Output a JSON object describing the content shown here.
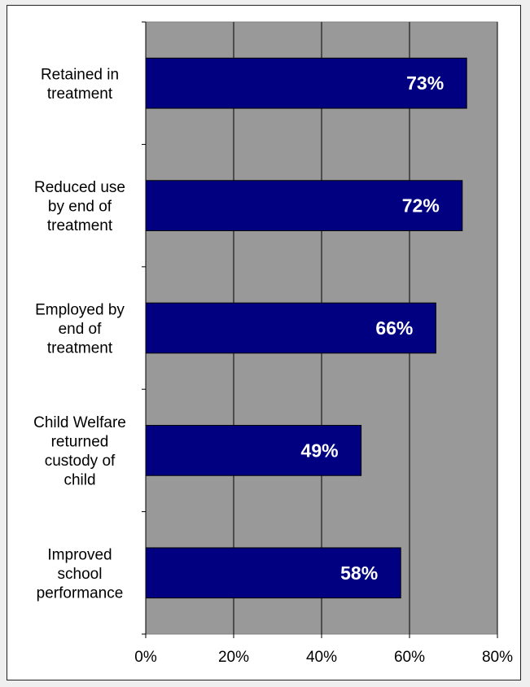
{
  "chart_data": {
    "type": "bar",
    "orientation": "horizontal",
    "title": "",
    "xlabel": "",
    "ylabel": "",
    "categories": [
      [
        "Retained in",
        "treatment"
      ],
      [
        "Reduced use",
        "by end of",
        "treatment"
      ],
      [
        "Employed by",
        "end of",
        "treatment"
      ],
      [
        "Child Welfare",
        "returned",
        "custody of",
        "child"
      ],
      [
        "Improved",
        "school",
        "performance"
      ]
    ],
    "values": [
      73,
      72,
      66,
      49,
      58
    ],
    "data_labels": [
      "73%",
      "72%",
      "66%",
      "49%",
      "58%"
    ],
    "xlim": [
      0,
      80
    ],
    "x_ticks": [
      0,
      20,
      40,
      60,
      80
    ],
    "x_tick_labels": [
      "0%",
      "20%",
      "40%",
      "60%",
      "80%"
    ],
    "grid": "vertical",
    "legend": "none",
    "colors": {
      "bar_fill": "#000080",
      "bar_stroke": "#000000",
      "plot_background": "#999999",
      "gridline": "#000000",
      "data_label": "#ffffff"
    }
  }
}
